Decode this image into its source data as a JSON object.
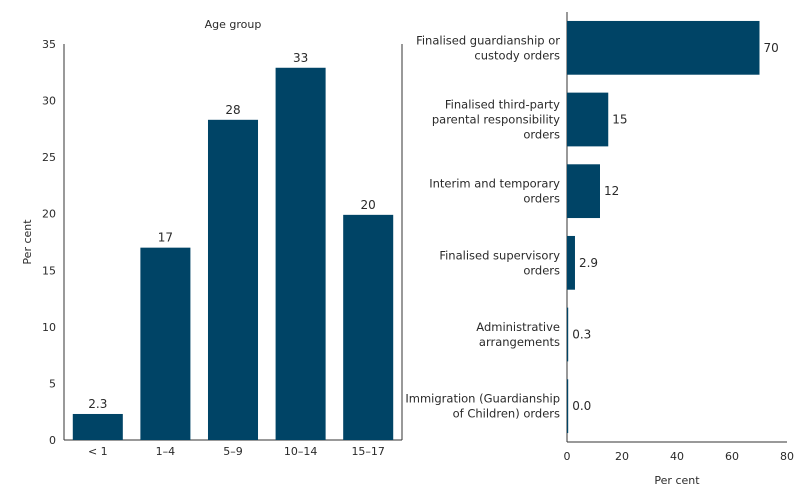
{
  "colors": {
    "bar": "#004466",
    "axis": "#333333",
    "text": "#2a2a2a"
  },
  "chart_data": [
    {
      "type": "bar",
      "orientation": "vertical",
      "title": "Age group",
      "ylabel": "Per cent",
      "categories": [
        "< 1",
        "1–4",
        "5–9",
        "10–14",
        "15–17"
      ],
      "values": [
        2.3,
        17,
        28.3,
        32.9,
        19.9
      ],
      "value_labels": [
        "2.3",
        "17",
        "28",
        "33",
        "20"
      ],
      "ylim": [
        0,
        35
      ],
      "yticks": [
        0,
        5,
        10,
        15,
        20,
        25,
        30,
        35
      ],
      "grid": false
    },
    {
      "type": "bar",
      "orientation": "horizontal",
      "xlabel": "Per cent",
      "categories": [
        [
          "Finalised guardianship or",
          "custody orders"
        ],
        [
          "Finalised third-party",
          "parental responsibility",
          "orders"
        ],
        [
          "Interim and temporary",
          "orders"
        ],
        [
          "Finalised supervisory",
          "orders"
        ],
        [
          "Administrative",
          "arrangements"
        ],
        [
          "Immigration (Guardianship",
          "of Children) orders"
        ]
      ],
      "values": [
        70,
        15,
        12,
        2.9,
        0.3,
        0.0
      ],
      "value_labels": [
        "70",
        "15",
        "12",
        "2.9",
        "0.3",
        "0.0"
      ],
      "xlim": [
        0,
        80
      ],
      "xticks": [
        0,
        20,
        40,
        60,
        80
      ],
      "grid": false
    }
  ]
}
